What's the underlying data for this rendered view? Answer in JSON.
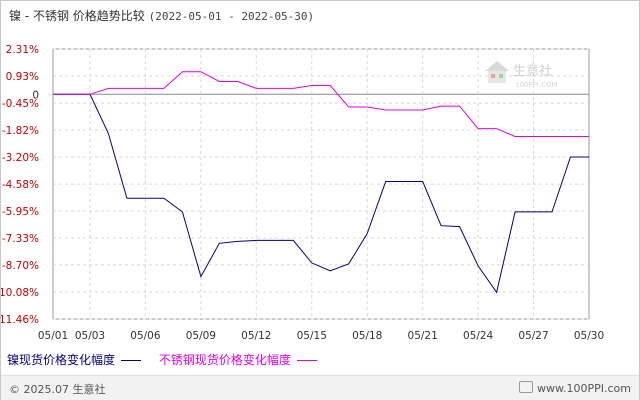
{
  "header": {
    "title": "镍 - 不锈钢 价格趋势比较",
    "date_range": "(2022-05-01 - 2022-05-30)"
  },
  "watermark": {
    "brand": "生意社",
    "url": "100PPI.COM"
  },
  "footer": {
    "copyright": "© 2025.07 生意社",
    "site": "www.100PPI.com"
  },
  "legend": [
    {
      "label": "镍现货价格变化幅度",
      "color": "#00008b"
    },
    {
      "label": "不锈钢现货价格变化幅度",
      "color": "#e600e6"
    }
  ],
  "chart_data": {
    "type": "line",
    "x": [
      "05/01",
      "05/02",
      "05/03",
      "05/04",
      "05/05",
      "05/06",
      "05/07",
      "05/08",
      "05/09",
      "05/10",
      "05/11",
      "05/12",
      "05/13",
      "05/14",
      "05/15",
      "05/16",
      "05/17",
      "05/18",
      "05/19",
      "05/20",
      "05/21",
      "05/22",
      "05/23",
      "05/24",
      "05/25",
      "05/26",
      "05/27",
      "05/28",
      "05/29",
      "05/30"
    ],
    "x_tick_labels": [
      "05/01",
      "05/03",
      "05/06",
      "05/09",
      "05/12",
      "05/15",
      "05/18",
      "05/21",
      "05/24",
      "05/27",
      "05/30"
    ],
    "y_tick_labels": [
      "2.31%",
      "0.93%",
      "0",
      "-0.45%",
      "-1.82%",
      "-3.20%",
      "-4.58%",
      "-5.95%",
      "-7.33%",
      "-8.70%",
      "-10.08%",
      "-11.46%"
    ],
    "y_ticks": [
      2.31,
      0.93,
      0,
      -0.45,
      -1.82,
      -3.2,
      -4.58,
      -5.95,
      -7.33,
      -8.7,
      -10.08,
      -11.46
    ],
    "ylim": [
      -11.46,
      2.31
    ],
    "grid": true,
    "series": [
      {
        "name": "镍现货价格变化幅度",
        "color": "#00008b",
        "values": [
          0,
          0,
          0,
          -2.0,
          -5.3,
          -5.3,
          -5.3,
          -6.0,
          -9.3,
          -7.6,
          -7.5,
          -7.45,
          -7.45,
          -7.45,
          -8.6,
          -9.0,
          -8.65,
          -7.1,
          -4.45,
          -4.45,
          -4.45,
          -6.7,
          -6.75,
          -8.75,
          -10.1,
          -6.0,
          -6.0,
          -6.0,
          -3.2,
          -3.2
        ]
      },
      {
        "name": "不锈钢现货价格变化幅度",
        "color": "#e600e6",
        "values": [
          0,
          0,
          0,
          0.3,
          0.3,
          0.3,
          0.3,
          1.15,
          1.15,
          0.65,
          0.65,
          0.3,
          0.3,
          0.3,
          0.45,
          0.45,
          -0.65,
          -0.65,
          -0.8,
          -0.8,
          -0.8,
          -0.6,
          -0.6,
          -1.75,
          -1.75,
          -2.15,
          -2.15,
          -2.15,
          -2.15,
          -2.15
        ]
      }
    ]
  }
}
